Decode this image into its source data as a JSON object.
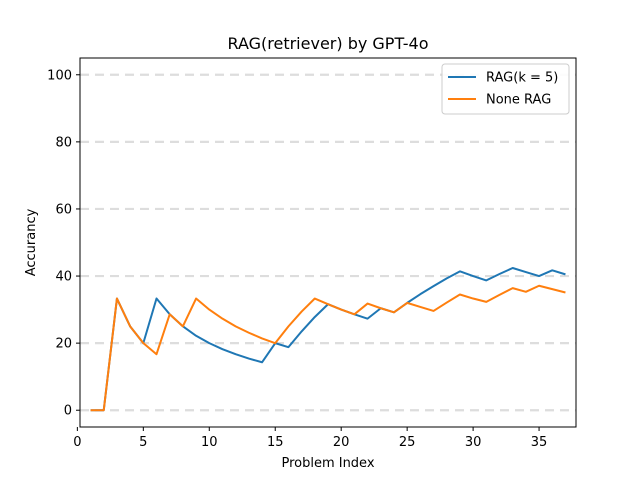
{
  "chart_data": {
    "type": "line",
    "title": "RAG(retriever) by GPT-4o",
    "xlabel": "Problem Index",
    "ylabel": "Accurancy",
    "xlim": [
      0.2,
      37.8
    ],
    "ylim": [
      -5,
      105
    ],
    "xticks": [
      0,
      5,
      10,
      15,
      20,
      25,
      30,
      35
    ],
    "yticks": [
      0,
      20,
      40,
      60,
      80,
      100
    ],
    "grid": "horizontal dashed",
    "legend_position": "top-right",
    "series": [
      {
        "name": "RAG(k = 5)",
        "color": "#1f77b4",
        "x": [
          1,
          2,
          3,
          4,
          5,
          6,
          7,
          8,
          9,
          10,
          11,
          12,
          13,
          14,
          15,
          16,
          17,
          18,
          19,
          20,
          21,
          22,
          23,
          24,
          25,
          26,
          27,
          28,
          29,
          30,
          31,
          32,
          33,
          34,
          35,
          36,
          37
        ],
        "values": [
          0,
          0,
          33.3,
          25,
          20,
          33.3,
          28.6,
          25,
          22.2,
          20,
          18.2,
          16.7,
          15.4,
          14.3,
          20,
          18.8,
          23.5,
          27.8,
          31.6,
          30,
          28.6,
          27.3,
          30.4,
          29.2,
          32,
          34.6,
          37,
          39.3,
          41.4,
          40,
          38.7,
          40.6,
          42.4,
          41.2,
          40,
          41.7,
          40.5
        ]
      },
      {
        "name": "None RAG",
        "color": "#ff7f0e",
        "x": [
          1,
          2,
          3,
          4,
          5,
          6,
          7,
          8,
          9,
          10,
          11,
          12,
          13,
          14,
          15,
          16,
          17,
          18,
          19,
          20,
          21,
          22,
          23,
          24,
          25,
          26,
          27,
          28,
          29,
          30,
          31,
          32,
          33,
          34,
          35,
          36,
          37
        ],
        "values": [
          0,
          0,
          33.3,
          25,
          20,
          16.7,
          28.6,
          25,
          33.3,
          30,
          27.3,
          25,
          23.1,
          21.4,
          20,
          25,
          29.4,
          33.3,
          31.6,
          30,
          28.6,
          31.8,
          30.4,
          29.2,
          32,
          30.8,
          29.6,
          32.1,
          34.5,
          33.3,
          32.3,
          34.4,
          36.4,
          35.3,
          37.1,
          36.1,
          35.1
        ]
      }
    ]
  }
}
